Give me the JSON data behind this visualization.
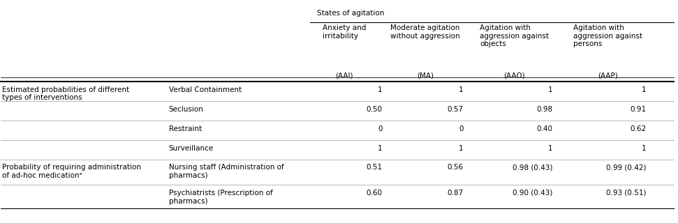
{
  "header_group": "States of agitation",
  "col_headers": [
    "Anxiety and\nirritability",
    "Moderate agitation\nwithout aggression",
    "Agitation with\naggression against\nobjects",
    "Agitation with\naggression against\npersons"
  ],
  "col_abbrevs": [
    "(AAI)",
    "(MA)",
    "(AAO)",
    "(AAP)"
  ],
  "row_groups": [
    {
      "group_label": "Estimated probabilities of different\ntypes of interventions",
      "rows": [
        {
          "label": "Verbal Containment",
          "values": [
            "1",
            "1",
            "1",
            "1"
          ]
        },
        {
          "label": "Seclusion",
          "values": [
            "0.50",
            "0.57",
            "0.98",
            "0.91"
          ]
        },
        {
          "label": "Restraint",
          "values": [
            "0",
            "0",
            "0.40",
            "0.62"
          ]
        },
        {
          "label": "Surveillance",
          "values": [
            "1",
            "1",
            "1",
            "1"
          ]
        }
      ]
    },
    {
      "group_label": "Probability of requiring administration\nof ad-hoc medicationᵃ",
      "rows": [
        {
          "label": "Nursing staff (Administration of\npharmacs)",
          "values": [
            "0.51",
            "0.56",
            "0.98 (0.43)",
            "0.99 (0.42)"
          ]
        },
        {
          "label": "Psychiatrists (Prescription of\npharmacs)",
          "values": [
            "0.60",
            "0.87",
            "0.90 (0.43)",
            "0.93 (0.51)"
          ]
        }
      ]
    }
  ],
  "bg_color": "#ffffff",
  "text_color": "#000000",
  "line_color": "#000000",
  "font_size": 7.5
}
